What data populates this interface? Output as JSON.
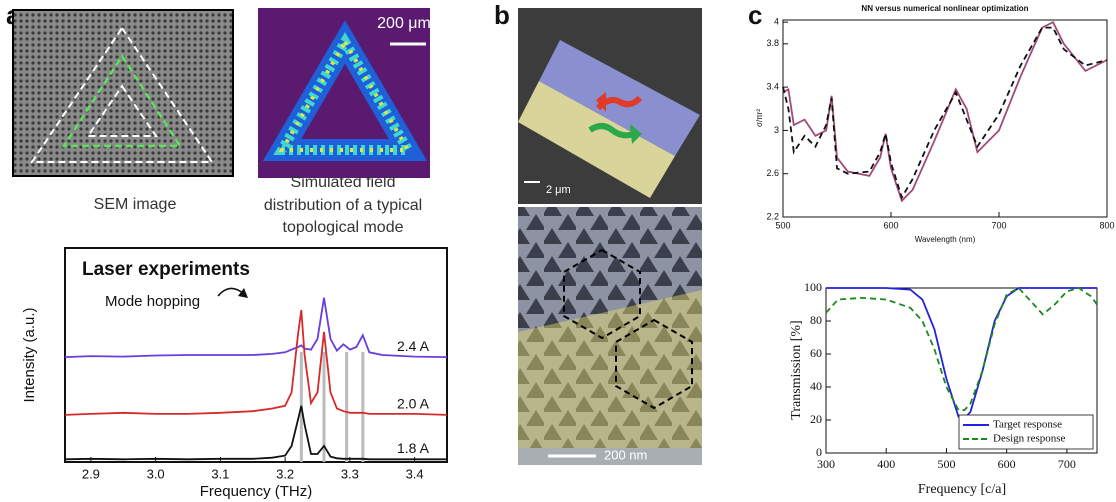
{
  "figure": {
    "panel_labels": [
      "a",
      "b",
      "c"
    ],
    "panel_a": {
      "sem_caption": "SEM image",
      "sim_caption": [
        "Simulated field",
        "distribution of a typical",
        "topological mode"
      ],
      "scale_bar": "200 μm"
    },
    "panel_b": {
      "scale_bar_top": "2 μm",
      "scale_bar_bottom": "200 nm"
    }
  },
  "chart_data": [
    {
      "type": "line",
      "title": "Laser experiments",
      "x_label": "Frequency (THz)",
      "y_label": "Intensity (a.u.)",
      "annotation": "Mode hopping",
      "x": [
        2.86,
        2.9,
        2.95,
        3.0,
        3.05,
        3.1,
        3.15,
        3.18,
        3.2,
        3.21,
        3.22,
        3.225,
        3.23,
        3.24,
        3.25,
        3.26,
        3.27,
        3.28,
        3.29,
        3.3,
        3.31,
        3.32,
        3.33,
        3.35,
        3.4,
        3.45
      ],
      "xlim": [
        2.86,
        3.45
      ],
      "xticks": [
        2.9,
        {
          "value": 3,
          "label": "3.0"
        },
        3.1,
        3.2,
        3.3,
        3.4
      ],
      "ylim": [
        0,
        4
      ],
      "vlines": [
        3.225,
        3.26,
        3.295,
        3.32
      ],
      "series": [
        {
          "name": "2.4 A",
          "color": "#6a3de0",
          "style": "solid",
          "values": [
            1.96,
            1.98,
            1.97,
            1.99,
            2.0,
            2.0,
            2.0,
            2.02,
            2.05,
            2.1,
            2.15,
            2.18,
            2.12,
            2.1,
            2.3,
            3.07,
            2.3,
            2.08,
            2.2,
            2.1,
            2.15,
            2.37,
            2.05,
            2.0,
            1.97,
            1.96
          ]
        },
        {
          "name": "2.0 A",
          "color": "#d62a2a",
          "style": "solid",
          "values": [
            0.88,
            0.9,
            0.92,
            0.9,
            0.9,
            0.92,
            0.95,
            1.0,
            1.05,
            1.3,
            2.4,
            2.84,
            2.0,
            1.1,
            1.3,
            2.43,
            1.3,
            1.0,
            0.95,
            0.92,
            0.92,
            0.92,
            0.9,
            0.9,
            0.9,
            0.88
          ]
        },
        {
          "name": "1.8 A",
          "color": "#111111",
          "style": "solid",
          "values": [
            0.05,
            0.06,
            0.05,
            0.06,
            0.05,
            0.06,
            0.06,
            0.08,
            0.12,
            0.3,
            0.8,
            1.05,
            0.7,
            0.15,
            0.15,
            0.3,
            0.1,
            0.07,
            0.06,
            0.06,
            0.06,
            0.06,
            0.05,
            0.05,
            0.05,
            0.05
          ]
        }
      ]
    },
    {
      "type": "line",
      "title": "NN versus numerical nonlinear optimization",
      "x_label": "Wavelength (nm)",
      "y_label": "σ/πr²",
      "xlim": [
        500,
        800
      ],
      "xticks": [
        500,
        600,
        700,
        800
      ],
      "ylim": [
        2.2,
        4.02
      ],
      "yticks": [
        2.2,
        2.6,
        3,
        3.4,
        3.8,
        4
      ],
      "series": [
        {
          "color": "#a04a78",
          "style": "solid",
          "x": [
            500,
            505,
            510,
            520,
            530,
            540,
            545,
            550,
            560,
            580,
            590,
            595,
            600,
            610,
            620,
            640,
            660,
            670,
            680,
            700,
            720,
            740,
            750,
            760,
            780,
            800
          ],
          "values": [
            3.35,
            3.38,
            3.05,
            3.1,
            2.95,
            3.0,
            3.32,
            2.75,
            2.62,
            2.58,
            2.75,
            2.97,
            2.65,
            2.35,
            2.45,
            2.9,
            3.38,
            3.2,
            2.8,
            3.0,
            3.5,
            3.95,
            4.0,
            3.8,
            3.55,
            3.65
          ]
        },
        {
          "color": "#111111",
          "style": "dashed",
          "x": [
            500,
            505,
            510,
            520,
            530,
            540,
            545,
            550,
            560,
            580,
            590,
            595,
            600,
            610,
            620,
            640,
            660,
            670,
            680,
            700,
            720,
            740,
            750,
            760,
            780,
            800
          ],
          "values": [
            3.4,
            3.2,
            2.8,
            2.95,
            2.85,
            3.05,
            3.3,
            2.65,
            2.6,
            2.62,
            2.8,
            2.97,
            2.7,
            2.38,
            2.55,
            3.0,
            3.35,
            3.1,
            2.85,
            3.15,
            3.6,
            3.95,
            3.95,
            3.75,
            3.6,
            3.65
          ]
        }
      ]
    },
    {
      "type": "line",
      "x_label": "Frequency [c/a]",
      "y_label": "Transmission [%]",
      "xlim": [
        300,
        750
      ],
      "xticks": [
        300,
        400,
        500,
        600,
        700
      ],
      "ylim": [
        0,
        100
      ],
      "yticks": [
        0,
        20,
        40,
        60,
        80,
        100
      ],
      "legend": "lower right",
      "series": [
        {
          "name": "Target response",
          "color": "#2222dd",
          "style": "solid",
          "x": [
            300,
            400,
            440,
            460,
            480,
            500,
            520,
            530,
            540,
            560,
            580,
            600,
            620,
            750
          ],
          "values": [
            100,
            100,
            99,
            93,
            75,
            45,
            22,
            21,
            25,
            50,
            80,
            95,
            100,
            100
          ]
        },
        {
          "name": "Design response",
          "color": "#1a8a1a",
          "style": "dashed",
          "x": [
            300,
            320,
            360,
            400,
            440,
            460,
            480,
            500,
            520,
            530,
            540,
            560,
            580,
            600,
            620,
            640,
            660,
            680,
            700,
            720,
            740,
            750
          ],
          "values": [
            85,
            93,
            94,
            93,
            88,
            80,
            63,
            40,
            26,
            26,
            30,
            50,
            78,
            96,
            100,
            92,
            84,
            90,
            98,
            100,
            95,
            90
          ]
        }
      ]
    }
  ]
}
